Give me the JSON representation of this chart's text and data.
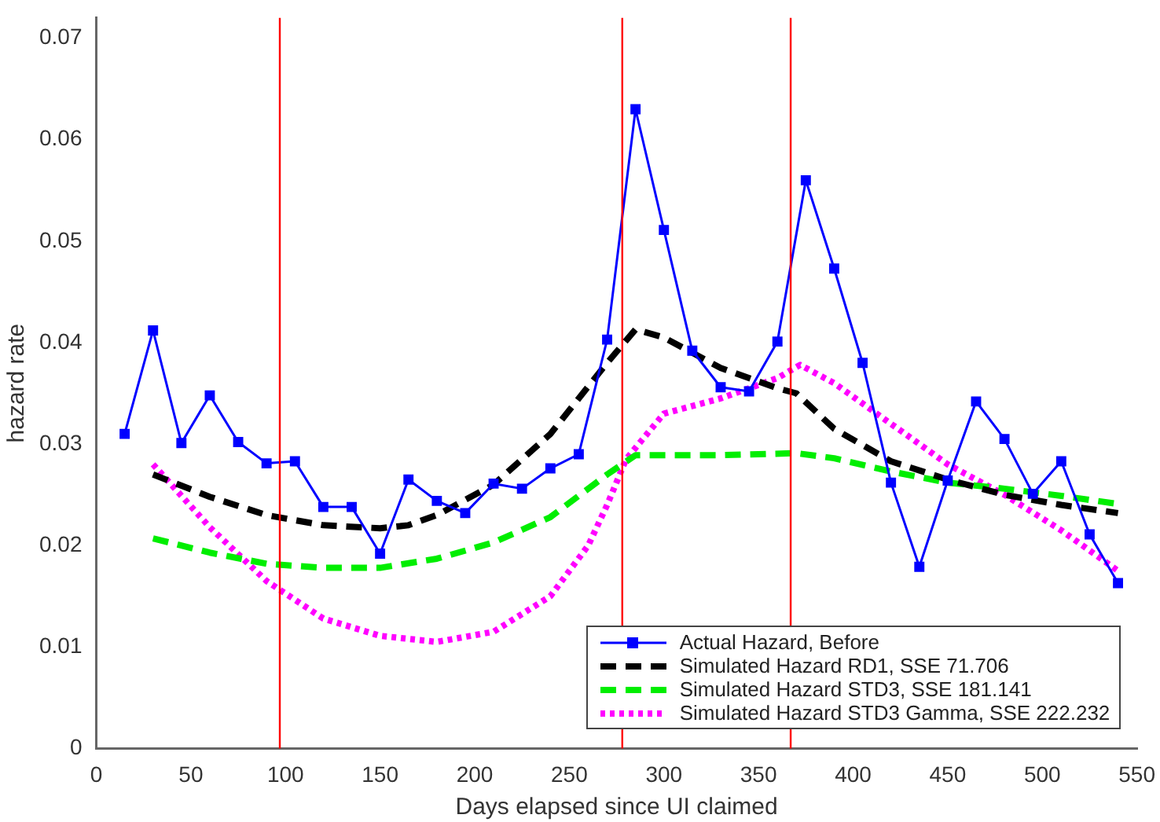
{
  "chart_data": {
    "type": "line",
    "xlabel": "Days elapsed since UI claimed",
    "ylabel": "hazard rate",
    "xlim": [
      0,
      550
    ],
    "xticks": [
      0,
      50,
      100,
      150,
      200,
      250,
      300,
      350,
      400,
      450,
      500,
      550
    ],
    "ylim": [
      0,
      0.072
    ],
    "yticks": [
      0,
      0.01,
      0.02,
      0.03,
      0.04,
      0.05,
      0.06,
      0.07
    ],
    "grid": false,
    "legend": "bottom right",
    "series": [
      {
        "name": "Actual Hazard, Before",
        "color": "#0000ff",
        "marker": "square",
        "line_style": "solid",
        "x": [
          15,
          30,
          45,
          60,
          75,
          90,
          105,
          120,
          135,
          150,
          165,
          180,
          195,
          210,
          225,
          240,
          255,
          270,
          285,
          300,
          315,
          330,
          345,
          360,
          375,
          390,
          405,
          420,
          435,
          450,
          465,
          480,
          495,
          510,
          525,
          540
        ],
        "values": [
          0.031,
          0.0412,
          0.0301,
          0.0348,
          0.0302,
          0.0281,
          0.0283,
          0.0238,
          0.0238,
          0.0192,
          0.0265,
          0.0244,
          0.0232,
          0.0261,
          0.0256,
          0.0276,
          0.029,
          0.0403,
          0.063,
          0.0511,
          0.0392,
          0.0356,
          0.0352,
          0.0401,
          0.056,
          0.0473,
          0.038,
          0.0262,
          0.0179,
          0.0264,
          0.0342,
          0.0305,
          0.0251,
          0.0283,
          0.0211,
          0.0163
        ]
      },
      {
        "name": "Simulated Hazard RD1, SSE 71.706",
        "color": "#000000",
        "marker": "none",
        "line_style": "dashed",
        "x": [
          30,
          60,
          90,
          120,
          150,
          165,
          180,
          210,
          240,
          255,
          270,
          285,
          300,
          330,
          360,
          370,
          390,
          420,
          450,
          480,
          510,
          540
        ],
        "values": [
          0.027,
          0.0248,
          0.023,
          0.022,
          0.0217,
          0.022,
          0.023,
          0.026,
          0.031,
          0.0345,
          0.038,
          0.0413,
          0.0405,
          0.0375,
          0.0355,
          0.035,
          0.0315,
          0.0283,
          0.0265,
          0.025,
          0.024,
          0.0232
        ]
      },
      {
        "name": "Simulated Hazard STD3, SSE 181.141",
        "color": "#00ee00",
        "marker": "none",
        "line_style": "dashed",
        "x": [
          30,
          60,
          90,
          120,
          150,
          180,
          210,
          240,
          270,
          285,
          330,
          370,
          390,
          420,
          450,
          480,
          510,
          540
        ],
        "values": [
          0.0207,
          0.0193,
          0.0182,
          0.0178,
          0.0178,
          0.0187,
          0.0203,
          0.0228,
          0.027,
          0.0289,
          0.0289,
          0.0291,
          0.0286,
          0.0273,
          0.0262,
          0.0256,
          0.0249,
          0.0241
        ]
      },
      {
        "name": "Simulated Hazard STD3 Gamma, SSE 222.232",
        "color": "#ff00ff",
        "marker": "none",
        "line_style": "dotted",
        "x": [
          30,
          60,
          90,
          120,
          150,
          180,
          210,
          240,
          260,
          270,
          280,
          300,
          330,
          360,
          372,
          390,
          420,
          450,
          480,
          510,
          540
        ],
        "values": [
          0.028,
          0.0218,
          0.0165,
          0.0128,
          0.0111,
          0.0105,
          0.0115,
          0.015,
          0.02,
          0.024,
          0.0285,
          0.033,
          0.0345,
          0.0365,
          0.0378,
          0.036,
          0.032,
          0.028,
          0.025,
          0.0215,
          0.0175
        ]
      }
    ],
    "ref_lines": [
      {
        "axis": "x",
        "value": 97,
        "color": "#ff0000"
      },
      {
        "axis": "x",
        "value": 278,
        "color": "#ff0000"
      },
      {
        "axis": "x",
        "value": 367,
        "color": "#ff0000"
      }
    ]
  }
}
